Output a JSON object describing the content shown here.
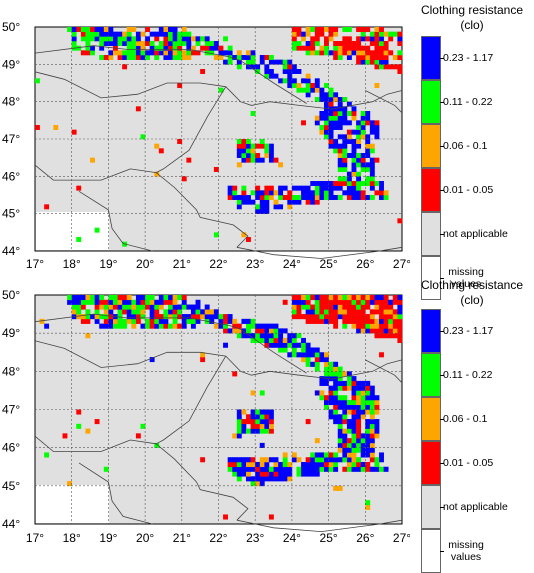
{
  "panels": [
    {
      "id": "top",
      "legend": {
        "title_line1": "Clothing resistance",
        "title_line2": "(clo)",
        "items": [
          {
            "label": "0.23 - 1.17",
            "color": "#0000ff"
          },
          {
            "label": "0.11 - 0.22",
            "color": "#00ff00"
          },
          {
            "label": "0.06 - 0.1",
            "color": "#ffa500"
          },
          {
            "label": "0.01 - 0.05",
            "color": "#ff0000"
          },
          {
            "label": "not applicable",
            "color": "#e0e0e0"
          },
          {
            "label": "missing values",
            "color": "#ffffff"
          }
        ]
      }
    },
    {
      "id": "bottom",
      "legend": {
        "title_line1": "Clothing resistance",
        "title_line2": "(clo)",
        "items": [
          {
            "label": "0.23 - 1.17",
            "color": "#0000ff"
          },
          {
            "label": "0.11 - 0.22",
            "color": "#00ff00"
          },
          {
            "label": "0.06 - 0.1",
            "color": "#ffa500"
          },
          {
            "label": "0.01 - 0.05",
            "color": "#ff0000"
          },
          {
            "label": "not applicable",
            "color": "#e0e0e0"
          },
          {
            "label": "missing values",
            "color": "#ffffff"
          }
        ]
      }
    }
  ],
  "map": {
    "lat_labels": [
      "50°",
      "49°",
      "48°",
      "47°",
      "46°",
      "45°",
      "44°"
    ],
    "lon_labels": [
      "17°",
      "18°",
      "19°",
      "20°",
      "21°",
      "22°",
      "23°",
      "24°",
      "25°",
      "26°",
      "27°"
    ],
    "lat_range": [
      44,
      50
    ],
    "lon_range": [
      17,
      27
    ]
  }
}
